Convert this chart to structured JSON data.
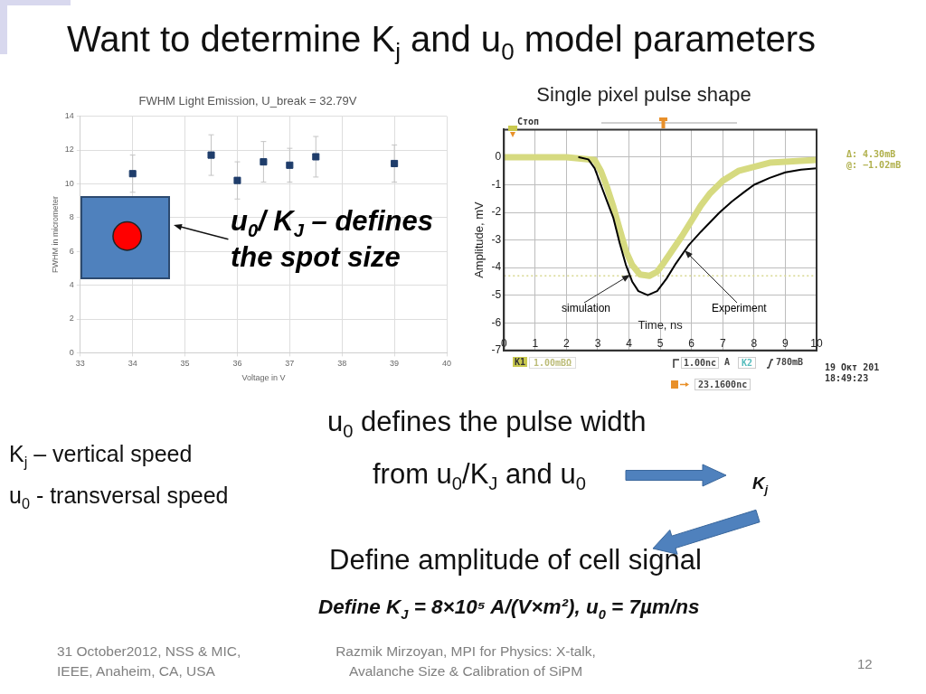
{
  "chart_data": [
    {
      "type": "other",
      "title": "Want to determine K$_{j}$ and u$_{0}$ model parameters"
    },
    {
      "type": "scatter",
      "title": "FWHM Light Emission, U_break = 32.79V",
      "xlabel": "Voltage in V",
      "ylabel": "FWHM in micrometer",
      "x": [
        34,
        35.5,
        36,
        36.5,
        37,
        37.5,
        39
      ],
      "values": [
        10.6,
        11.7,
        10.2,
        11.3,
        11.1,
        11.6,
        11.2
      ],
      "errors": [
        1.1,
        1.2,
        1.1,
        1.2,
        1.0,
        1.2,
        1.1
      ],
      "color": "#1f3d6b",
      "marker": "square",
      "xlim": [
        33,
        40
      ],
      "ylim": [
        0,
        14
      ],
      "xticks": [
        33,
        34,
        35,
        36,
        37,
        38,
        39,
        40
      ],
      "yticks": [
        0,
        2,
        4,
        6,
        8,
        10,
        12,
        14
      ],
      "grid": true,
      "annotations": [
        "u$_{0}$/ K$_{J}$ – defines the spot size"
      ]
    },
    {
      "type": "line",
      "title": "Single pixel pulse shape",
      "xlabel": "Time, ns",
      "ylabel": "Amplitude, mV",
      "series": [
        {
          "name": "simulation",
          "color": "#000000",
          "x": [
            2.4,
            2.7,
            2.9,
            3.1,
            3.3,
            3.5,
            3.7,
            3.9,
            4.1,
            4.3,
            4.6,
            4.9,
            5.2,
            5.5,
            5.9,
            6.3,
            6.6,
            6.9,
            7.3,
            7.7,
            8.0,
            8.5,
            9.0,
            9.5,
            10
          ],
          "values": [
            0,
            -0.08,
            -0.4,
            -1.0,
            -1.6,
            -2.2,
            -3.1,
            -3.9,
            -4.5,
            -4.85,
            -5.0,
            -4.85,
            -4.4,
            -3.85,
            -3.2,
            -2.7,
            -2.35,
            -2.0,
            -1.6,
            -1.25,
            -1.0,
            -0.75,
            -0.55,
            -0.45,
            -0.4
          ]
        },
        {
          "name": "Experiment",
          "color": "#d6da80",
          "x": [
            0,
            1,
            2,
            2.9,
            3.1,
            3.3,
            3.5,
            3.7,
            3.9,
            4.1,
            4.35,
            4.65,
            4.9,
            5.1,
            5.4,
            5.7,
            6.0,
            6.3,
            6.6,
            7.0,
            7.5,
            8.5,
            10
          ],
          "values": [
            0,
            0,
            0,
            -0.1,
            -0.5,
            -1.1,
            -1.8,
            -2.6,
            -3.4,
            -3.9,
            -4.25,
            -4.3,
            -4.15,
            -3.85,
            -3.35,
            -2.85,
            -2.3,
            -1.75,
            -1.3,
            -0.85,
            -0.5,
            -0.2,
            -0.1
          ]
        }
      ],
      "xlim": [
        0,
        10
      ],
      "ylim": [
        -7,
        1
      ],
      "xticks": [
        0,
        1,
        2,
        3,
        4,
        5,
        6,
        7,
        8,
        9,
        10
      ],
      "yticks": [
        -7,
        -6,
        -5,
        -4,
        -3,
        -2,
        -1,
        0
      ],
      "grid": true,
      "ref_lines": [
        {
          "axis": "y",
          "value": -4.3,
          "color": "#d8d890",
          "line_style": "dotted"
        }
      ],
      "annotations": [
        "Стоп",
        "Δ: 4.30mB",
        "@: −1.02mB",
        "K1",
        "1.00mBΩ",
        "1.00nc",
        "A",
        "K2",
        "780mB",
        "23.1600nc",
        "19 Окт 201",
        "18:49:23"
      ]
    },
    {
      "type": "other",
      "annotations": [
        "K$_{j}$ – vertical speed",
        "u$_{0}$ - transversal speed",
        "u$_{0}$ defines the pulse width",
        "from u$_{0}$/K$_{J}$ and u$_{0}$",
        "K$_{j}$",
        "Define amplitude of cell signal",
        "Define K$_{J}$ = 8×10⁵ A/(V×m²), u$_{0}$ = 7µm/ns",
        "31 October2012, NSS & MIC, IEEE, Anaheim, CA, USA",
        "Razmik Mirzoyan, MPI for Physics: X-talk, Avalanche Size & Calibration of SiPM",
        "12"
      ]
    }
  ]
}
